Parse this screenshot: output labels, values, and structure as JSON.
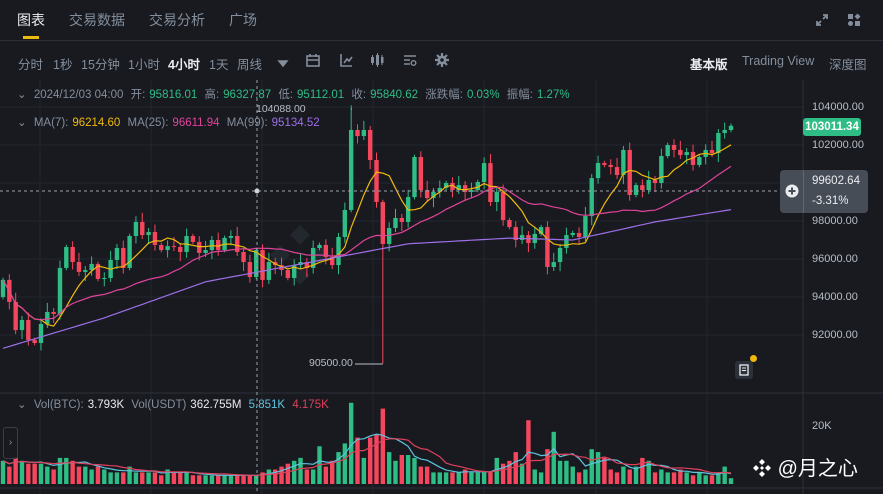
{
  "tabs": [
    {
      "label": "图表",
      "active": true
    },
    {
      "label": "交易数据"
    },
    {
      "label": "交易分析"
    },
    {
      "label": "广场"
    }
  ],
  "top_icons": [
    "expand-icon",
    "widgets-icon"
  ],
  "timeframes": [
    {
      "label": "分时"
    },
    {
      "label": "1秒"
    },
    {
      "label": "15分钟"
    },
    {
      "label": "1小时"
    },
    {
      "label": "4小时",
      "active": true
    },
    {
      "label": "1天"
    },
    {
      "label": "周线"
    }
  ],
  "views": [
    {
      "label": "基本版",
      "active": true
    },
    {
      "label": "Trading View"
    },
    {
      "label": "深度图"
    }
  ],
  "info": {
    "date": "2024/12/03 04:00",
    "open_label": "开:",
    "open": "95816.01",
    "high_label": "高:",
    "high": "96327.87",
    "low_label": "低:",
    "low": "95112.01",
    "close_label": "收:",
    "close": "95840.62",
    "change_label": "涨跌幅:",
    "change": "0.03%",
    "amp_label": "振幅:",
    "amp": "1.27%"
  },
  "ma": {
    "ma7_label": "MA(7):",
    "ma7": "96214.60",
    "ma25_label": "MA(25):",
    "ma25": "96611.94",
    "ma99_label": "MA(99):",
    "ma99": "95134.52"
  },
  "vol": {
    "btc_label": "Vol(BTC):",
    "btc": "3.793K",
    "usdt_label": "Vol(USDT)",
    "usdt": "362.755M",
    "ma_a": "5.851K",
    "ma_b": "4.175K",
    "axis_label": "20K"
  },
  "price_axis": [
    "104000.00",
    "102000.00",
    "98000.00",
    "96000.00",
    "94000.00",
    "92000.00"
  ],
  "current_price": "103011.34",
  "crosshair": {
    "price": "99602.64",
    "change": "-3.31%"
  },
  "annotations": {
    "max": "104088.00",
    "min": "90500.00"
  },
  "watermark": "@月之心",
  "colors": {
    "up": "#2ebd85",
    "down": "#f6465d",
    "ma7": "#f0b90b",
    "ma25": "#e0449a",
    "ma99": "#9e6fe8",
    "vol_ma_a": "#5ec4e0",
    "vol_ma_b": "#e0405a",
    "accent": "#f0b90b"
  },
  "chart_data": {
    "type": "candlestick",
    "interval": "4小时",
    "ylim": [
      89000,
      105000
    ],
    "start_open": 94000,
    "closes": [
      94900,
      93740,
      92260,
      92790,
      91740,
      91580,
      92580,
      93210,
      93110,
      95530,
      96630,
      95840,
      95320,
      95420,
      95740,
      94950,
      95000,
      95950,
      96580,
      95530,
      97210,
      97950,
      97260,
      97420,
      96740,
      96470,
      96680,
      96630,
      96370,
      97210,
      96900,
      96320,
      96470,
      97000,
      96470,
      97110,
      97210,
      96370,
      95840,
      95050,
      96470,
      94900,
      95840,
      95680,
      95420,
      95000,
      95680,
      95840,
      95530,
      96580,
      96740,
      96110,
      95680,
      97160,
      98580,
      102790,
      102470,
      102790,
      101210,
      99000,
      96790,
      97630,
      98160,
      97950,
      99260,
      101370,
      99630,
      99210,
      99530,
      99740,
      100000,
      99630,
      99890,
      99530,
      99630,
      100050,
      101050,
      99000,
      99530,
      98050,
      97680,
      97000,
      97260,
      96840,
      97320,
      97680,
      95580,
      95840,
      96580,
      97260,
      97370,
      97160,
      98260,
      100260,
      101050,
      100950,
      100840,
      100420,
      101740,
      99370,
      99890,
      99630,
      100160,
      100000,
      101420,
      102000,
      101740,
      101470,
      101630,
      100950,
      101370,
      101740,
      101580,
      102630,
      102790,
      103011.34
    ],
    "max": {
      "index": 55,
      "value": 104088
    },
    "min": {
      "index": 60,
      "value": 90500
    },
    "ma99_samples": {
      "index": [
        0,
        16,
        32,
        48,
        64,
        80,
        90,
        103,
        115
      ],
      "value": [
        91300,
        92900,
        94800,
        95800,
        96800,
        97100,
        97000,
        97950,
        98600
      ]
    },
    "volume_k": [
      8,
      6,
      9,
      8,
      7,
      7,
      7,
      6,
      5,
      9,
      9,
      8,
      6,
      6,
      5,
      6,
      5,
      4,
      4,
      4,
      6,
      4,
      4,
      4,
      4,
      3,
      5,
      4,
      4,
      4,
      3,
      3,
      3,
      3,
      3,
      3,
      3,
      3,
      3,
      3,
      3,
      4,
      5,
      5,
      6,
      7,
      8,
      9,
      5,
      5,
      13,
      6,
      8,
      11,
      14,
      28,
      16,
      9,
      16,
      17,
      26,
      11,
      8,
      10,
      10,
      9,
      6,
      6,
      4,
      4,
      4,
      4,
      4,
      5,
      4,
      4,
      4,
      4,
      9,
      7,
      8,
      11,
      7,
      22,
      5,
      4,
      12,
      18,
      8,
      8,
      6,
      4,
      5,
      12,
      11,
      9,
      5,
      4,
      6,
      5,
      6,
      9,
      8,
      4,
      5,
      4,
      4,
      5,
      4,
      3,
      4,
      3,
      3,
      4,
      6,
      2
    ]
  }
}
